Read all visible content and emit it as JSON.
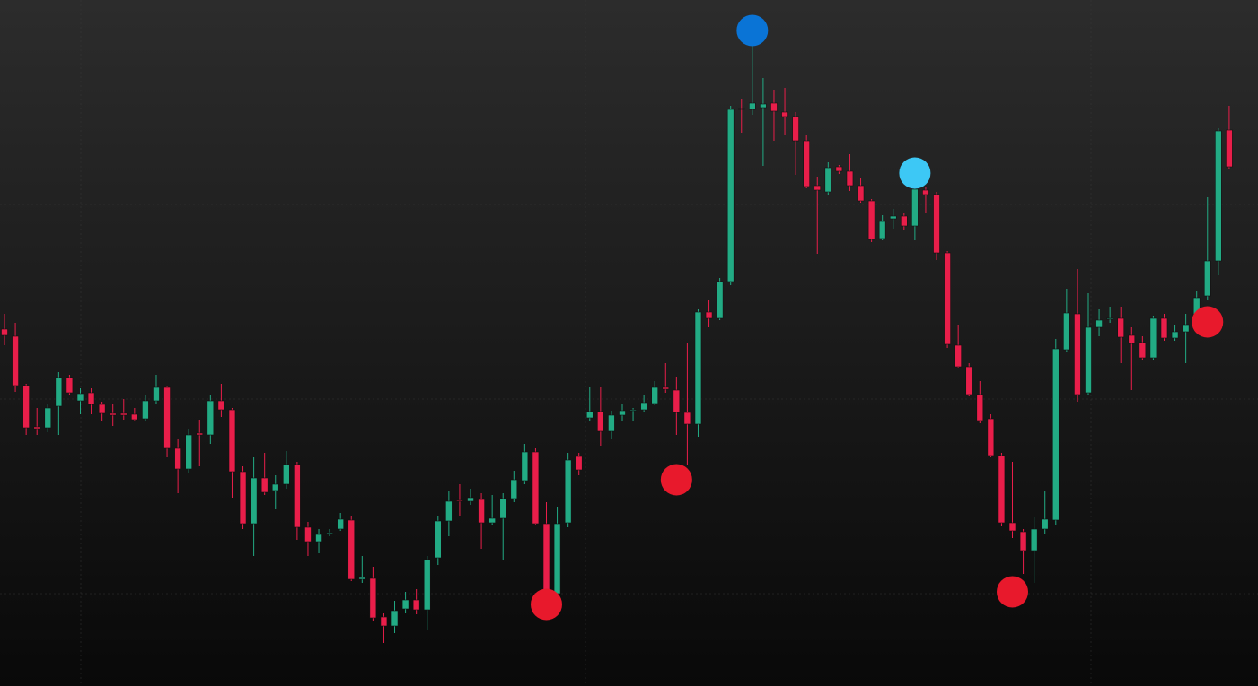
{
  "chart_data": {
    "type": "candlestick",
    "ylim": [
      0,
      765
    ],
    "up_color": "#22ab84",
    "down_color": "#e91e4a",
    "open": [
      398,
      390,
      335,
      289,
      288,
      312,
      344,
      318,
      327,
      314,
      304,
      304,
      303,
      298,
      318,
      333,
      265,
      242,
      282,
      280,
      318,
      308,
      239,
      181,
      232,
      218,
      225,
      247,
      177,
      161,
      170,
      175,
      185,
      119,
      120,
      77,
      67,
      86,
      96,
      85,
      143,
      184,
      207,
      206,
      208,
      182,
      187,
      209,
      229,
      261,
      181,
      103,
      182,
      256,
      299,
      306,
      284,
      302,
      307,
      308,
      315,
      333,
      330,
      305,
      292,
      417,
      410,
      451,
      644,
      643,
      645,
      650,
      640,
      635,
      608,
      558,
      551,
      579,
      574,
      558,
      541,
      499,
      521,
      524,
      513,
      553,
      548,
      483,
      380,
      356,
      325,
      298,
      257,
      182,
      172,
      151,
      175,
      185,
      375,
      415,
      327,
      400,
      409,
      410,
      391,
      383,
      366,
      410,
      388,
      395,
      404,
      435,
      474,
      620
    ],
    "high": [
      415,
      405,
      337,
      310,
      315,
      350,
      347,
      332,
      332,
      317,
      315,
      320,
      310,
      325,
      347,
      335,
      275,
      287,
      297,
      325,
      337,
      310,
      245,
      255,
      260,
      235,
      262,
      250,
      183,
      175,
      175,
      193,
      190,
      145,
      133,
      81,
      95,
      105,
      108,
      145,
      190,
      218,
      225,
      220,
      215,
      213,
      215,
      240,
      270,
      265,
      205,
      200,
      260,
      260,
      333,
      333,
      307,
      315,
      310,
      325,
      340,
      360,
      345,
      382,
      420,
      430,
      455,
      647,
      655,
      715,
      678,
      665,
      667,
      640,
      615,
      568,
      584,
      581,
      593,
      567,
      543,
      525,
      532,
      527,
      560,
      557,
      551,
      485,
      403,
      360,
      340,
      303,
      260,
      250,
      175,
      188,
      217,
      387,
      443,
      465,
      438,
      420,
      423,
      423,
      400,
      390,
      413,
      415,
      403,
      415,
      440,
      545,
      622,
      647
    ],
    "low": [
      380,
      328,
      280,
      280,
      283,
      280,
      325,
      303,
      303,
      295,
      290,
      297,
      295,
      295,
      315,
      255,
      215,
      237,
      245,
      270,
      300,
      210,
      175,
      145,
      213,
      197,
      220,
      163,
      145,
      148,
      167,
      173,
      117,
      115,
      73,
      48,
      59,
      81,
      80,
      62,
      135,
      167,
      190,
      202,
      153,
      180,
      140,
      205,
      225,
      179,
      100,
      100,
      177,
      235,
      295,
      268,
      275,
      295,
      295,
      305,
      313,
      327,
      280,
      247,
      278,
      400,
      408,
      447,
      617,
      637,
      580,
      608,
      615,
      570,
      555,
      482,
      547,
      571,
      552,
      539,
      495,
      497,
      510,
      509,
      497,
      527,
      475,
      377,
      355,
      323,
      293,
      255,
      178,
      165,
      125,
      115,
      170,
      180,
      373,
      317,
      325,
      390,
      405,
      360,
      330,
      363,
      363,
      385,
      385,
      360,
      397,
      430,
      458,
      577
    ],
    "close": [
      391,
      335,
      288,
      287,
      310,
      344,
      327,
      326,
      314,
      304,
      302,
      302,
      297,
      318,
      333,
      265,
      242,
      280,
      280,
      318,
      308,
      239,
      181,
      232,
      216,
      225,
      247,
      177,
      161,
      169,
      171,
      186,
      119,
      121,
      76,
      67,
      84,
      96,
      85,
      141,
      184,
      206,
      206,
      210,
      182,
      187,
      209,
      230,
      261,
      181,
      103,
      181,
      252,
      241,
      306,
      284,
      302,
      307,
      308,
      316,
      333,
      331,
      305,
      292,
      417,
      410,
      451,
      643,
      643,
      650,
      649,
      641,
      635,
      608,
      557,
      553,
      578,
      574,
      558,
      541,
      498,
      518,
      524,
      513,
      554,
      548,
      483,
      381,
      356,
      325,
      296,
      257,
      182,
      173,
      151,
      175,
      186,
      376,
      416,
      325,
      400,
      408,
      410,
      389,
      382,
      366,
      410,
      388,
      395,
      403,
      433,
      474,
      619,
      579
    ],
    "markers": [
      {
        "index": 50,
        "value": 91,
        "color": "#e8192c"
      },
      {
        "index": 62,
        "value": 230,
        "color": "#e8192c"
      },
      {
        "index": 69,
        "value": 731,
        "color": "#0a74d6"
      },
      {
        "index": 84,
        "value": 572,
        "color": "#3dc8f5"
      },
      {
        "index": 93,
        "value": 105,
        "color": "#e8192c"
      },
      {
        "index": 111,
        "value": 406,
        "color": "#e8192c"
      }
    ]
  }
}
